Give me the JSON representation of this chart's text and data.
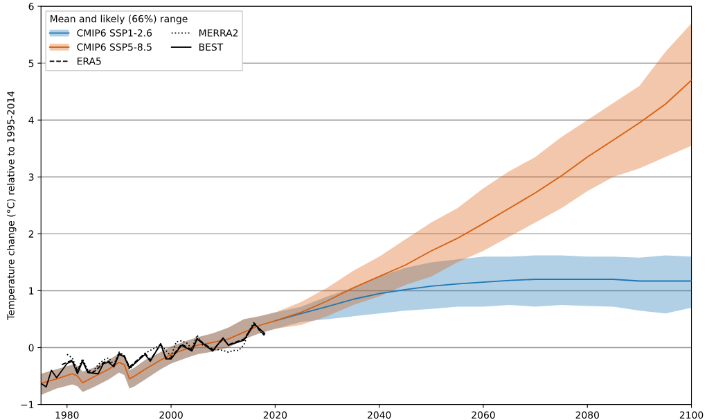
{
  "chart_data": {
    "type": "line",
    "ylabel": "Temperature change (°C) relative to 1995-2014",
    "legend_title": "Mean and likely (66%) range",
    "legend": "top left",
    "grid": "y",
    "xlim": [
      1975,
      2100
    ],
    "xticks": [
      1980,
      2000,
      2020,
      2040,
      2060,
      2080,
      2100
    ],
    "ylim": [
      -1,
      6
    ],
    "yticks": [
      {
        "value": -1,
        "label": "−1"
      },
      0,
      1,
      2,
      3,
      4,
      5,
      6
    ],
    "series": [
      {
        "name": "CMIP6 SSP1-2.6",
        "color": "#1f77b4",
        "line_style": "solid",
        "x": [
          1975,
          1978,
          1981,
          1982,
          1983,
          1985,
          1988,
          1990,
          1991,
          1992,
          1993,
          1995,
          1998,
          2000,
          2003,
          2005,
          2008,
          2011,
          2014,
          2017,
          2020,
          2025,
          2030,
          2035,
          2040,
          2045,
          2050,
          2055,
          2060,
          2065,
          2070,
          2075,
          2080,
          2085,
          2090,
          2095,
          2100
        ],
        "values": [
          null,
          null,
          null,
          null,
          null,
          null,
          null,
          null,
          null,
          null,
          null,
          null,
          null,
          null,
          null,
          null,
          null,
          null,
          null,
          null,
          0.47,
          0.6,
          0.72,
          0.85,
          0.95,
          1.02,
          1.08,
          1.12,
          1.15,
          1.18,
          1.2,
          1.2,
          1.2,
          1.2,
          1.17,
          1.17,
          1.17
        ],
        "lower": [
          -0.83,
          -0.72,
          -0.65,
          -0.68,
          -0.78,
          -0.7,
          -0.56,
          -0.44,
          -0.48,
          -0.72,
          -0.68,
          -0.56,
          -0.38,
          -0.28,
          -0.18,
          -0.12,
          -0.07,
          0.0,
          0.15,
          0.25,
          0.33,
          0.45,
          0.5,
          0.55,
          0.6,
          0.65,
          0.68,
          0.72,
          0.72,
          0.75,
          0.72,
          0.75,
          0.73,
          0.72,
          0.65,
          0.6,
          0.7
        ],
        "upper": [
          -0.46,
          -0.38,
          -0.3,
          -0.32,
          -0.42,
          -0.36,
          -0.22,
          -0.1,
          -0.14,
          -0.4,
          -0.35,
          -0.22,
          -0.08,
          0.02,
          0.12,
          0.18,
          0.25,
          0.35,
          0.5,
          0.55,
          0.62,
          0.72,
          0.9,
          1.05,
          1.25,
          1.4,
          1.5,
          1.55,
          1.6,
          1.6,
          1.62,
          1.62,
          1.6,
          1.6,
          1.58,
          1.62,
          1.6
        ]
      },
      {
        "name": "CMIP6 SSP5-8.5",
        "color": "#d95f0e",
        "line_style": "solid",
        "x": [
          1975,
          1978,
          1981,
          1982,
          1983,
          1985,
          1988,
          1990,
          1991,
          1992,
          1993,
          1995,
          1998,
          2000,
          2003,
          2005,
          2008,
          2011,
          2014,
          2017,
          2020,
          2025,
          2030,
          2035,
          2040,
          2045,
          2050,
          2055,
          2060,
          2065,
          2070,
          2075,
          2080,
          2085,
          2090,
          2095,
          2100
        ],
        "values": [
          -0.63,
          -0.55,
          -0.46,
          -0.5,
          -0.62,
          -0.52,
          -0.38,
          -0.26,
          -0.3,
          -0.55,
          -0.5,
          -0.38,
          -0.22,
          -0.12,
          -0.02,
          0.04,
          0.09,
          0.15,
          0.27,
          0.39,
          0.47,
          0.62,
          0.82,
          1.05,
          1.25,
          1.45,
          1.7,
          1.92,
          2.18,
          2.45,
          2.72,
          3.02,
          3.35,
          3.65,
          3.95,
          4.28,
          4.7
        ],
        "lower": [
          -0.83,
          -0.72,
          -0.65,
          -0.68,
          -0.78,
          -0.7,
          -0.56,
          -0.44,
          -0.48,
          -0.72,
          -0.68,
          -0.56,
          -0.38,
          -0.28,
          -0.18,
          -0.12,
          -0.07,
          0.0,
          0.15,
          0.25,
          0.33,
          0.4,
          0.55,
          0.75,
          0.9,
          1.1,
          1.25,
          1.5,
          1.7,
          1.95,
          2.2,
          2.45,
          2.75,
          3.0,
          3.15,
          3.35,
          3.55
        ],
        "upper": [
          -0.46,
          -0.38,
          -0.3,
          -0.32,
          -0.42,
          -0.36,
          -0.22,
          -0.1,
          -0.14,
          -0.4,
          -0.35,
          -0.22,
          -0.08,
          0.02,
          0.12,
          0.18,
          0.25,
          0.35,
          0.5,
          0.55,
          0.62,
          0.8,
          1.05,
          1.35,
          1.6,
          1.9,
          2.2,
          2.45,
          2.8,
          3.1,
          3.35,
          3.7,
          4.0,
          4.3,
          4.6,
          5.2,
          5.7
        ]
      },
      {
        "name": "ERA5",
        "color": "#000000",
        "line_style": "dashed",
        "x": [
          1979,
          1980,
          1981,
          1982,
          1983,
          1984,
          1985,
          1986,
          1987,
          1988,
          1989,
          1990,
          1991,
          1992,
          1995,
          1996,
          1998,
          1999,
          2000,
          2002,
          2004,
          2005,
          2008,
          2010,
          2011,
          2014,
          2016,
          2017,
          2018
        ],
        "values": [
          -0.3,
          -0.26,
          -0.22,
          -0.42,
          -0.22,
          -0.42,
          -0.44,
          -0.36,
          -0.26,
          -0.24,
          -0.32,
          -0.1,
          -0.14,
          -0.34,
          -0.1,
          -0.22,
          0.06,
          -0.18,
          -0.18,
          0.06,
          -0.04,
          0.16,
          -0.04,
          0.15,
          0.05,
          0.15,
          0.42,
          0.3,
          0.22
        ]
      },
      {
        "name": "MERRA2",
        "color": "#000000",
        "line_style": "dotted",
        "x": [
          1980,
          1981,
          1982,
          1983,
          1984,
          1985,
          1986,
          1987,
          1988,
          1989,
          1990,
          1991,
          1992,
          1995,
          1998,
          2000,
          2001,
          2002,
          2003,
          2004,
          2005,
          2006,
          2008,
          2010,
          2011,
          2012,
          2013,
          2014,
          2015,
          2016,
          2017,
          2018
        ],
        "values": [
          -0.12,
          -0.18,
          -0.4,
          -0.2,
          -0.4,
          -0.42,
          -0.3,
          -0.22,
          -0.18,
          -0.3,
          -0.08,
          -0.14,
          -0.38,
          -0.1,
          0.05,
          -0.15,
          0.1,
          0.12,
          0.08,
          -0.02,
          0.22,
          0.05,
          -0.02,
          -0.05,
          -0.08,
          -0.05,
          -0.05,
          0.05,
          0.3,
          0.45,
          0.3,
          0.2
        ]
      },
      {
        "name": "BEST",
        "color": "#000000",
        "line_style": "solid",
        "x": [
          1975,
          1976,
          1977,
          1978,
          1980,
          1981,
          1982,
          1983,
          1984,
          1986,
          1987,
          1988,
          1989,
          1990,
          1991,
          1992,
          1995,
          1996,
          1998,
          1999,
          2000,
          2002,
          2004,
          2005,
          2008,
          2010,
          2011,
          2014,
          2016,
          2018
        ],
        "values": [
          -0.63,
          -0.69,
          -0.4,
          -0.53,
          -0.28,
          -0.24,
          -0.46,
          -0.24,
          -0.44,
          -0.46,
          -0.28,
          -0.26,
          -0.34,
          -0.12,
          -0.16,
          -0.36,
          -0.12,
          -0.24,
          0.07,
          -0.2,
          -0.2,
          0.04,
          -0.06,
          0.15,
          -0.06,
          0.17,
          0.04,
          0.13,
          0.41,
          0.25
        ]
      }
    ]
  }
}
